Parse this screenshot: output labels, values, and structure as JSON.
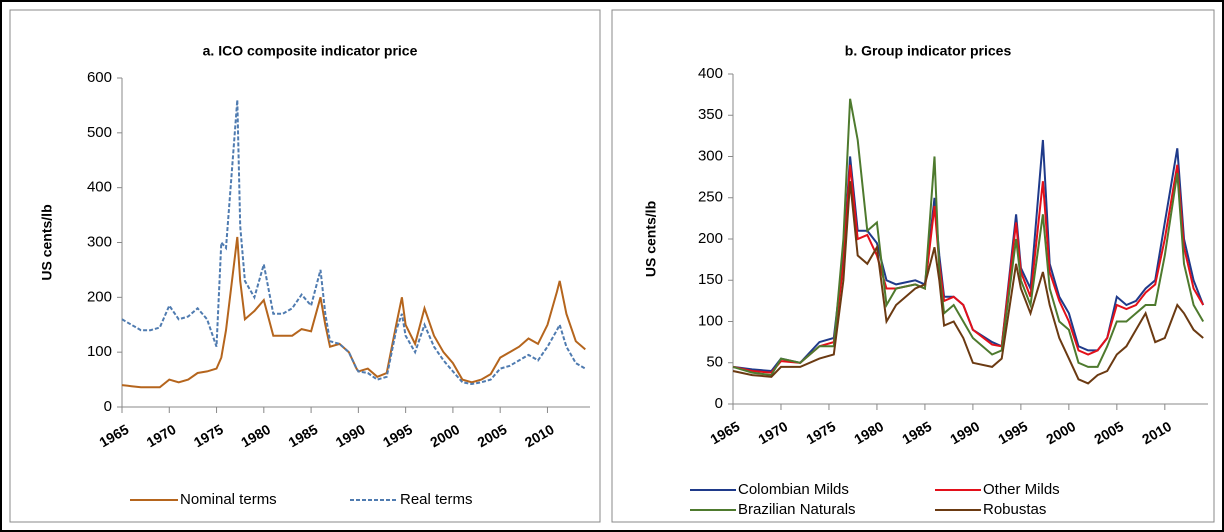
{
  "chart_data": [
    {
      "type": "line",
      "title": "a. ICO composite indicator price",
      "y_label": "US cents/lb",
      "x": [
        1965,
        1966,
        1967,
        1968,
        1969,
        1970,
        1971,
        1972,
        1973,
        1974,
        1975,
        1975.5,
        1976,
        1977.2,
        1977.5,
        1978,
        1979,
        1980,
        1981,
        1982,
        1983,
        1984,
        1985,
        1986,
        1986.5,
        1987,
        1988,
        1989,
        1989.8,
        1990,
        1991,
        1992,
        1993,
        1994,
        1994.6,
        1995,
        1996,
        1997,
        1998,
        1999,
        2000,
        2001,
        2002,
        2003,
        2004,
        2005,
        2006,
        2007,
        2008,
        2009,
        2010,
        2011,
        2011.3,
        2012,
        2013,
        2014
      ],
      "series": [
        {
          "name": "Nominal terms",
          "color": "#b5651d",
          "line_style": "solid",
          "values": [
            40,
            38,
            36,
            36,
            36,
            50,
            45,
            50,
            62,
            65,
            70,
            90,
            140,
            310,
            230,
            160,
            175,
            195,
            130,
            130,
            130,
            142,
            138,
            200,
            150,
            110,
            115,
            100,
            70,
            65,
            70,
            55,
            62,
            150,
            200,
            150,
            115,
            180,
            130,
            100,
            80,
            50,
            45,
            50,
            60,
            90,
            100,
            110,
            125,
            115,
            150,
            210,
            230,
            170,
            120,
            105
          ]
        },
        {
          "name": "Real terms",
          "color": "#4f7bb0",
          "line_style": "dashed",
          "values": [
            160,
            150,
            140,
            140,
            145,
            185,
            160,
            165,
            180,
            160,
            110,
            300,
            290,
            560,
            330,
            230,
            200,
            260,
            170,
            170,
            180,
            205,
            185,
            250,
            170,
            120,
            115,
            100,
            70,
            65,
            62,
            50,
            55,
            140,
            170,
            130,
            100,
            150,
            110,
            85,
            65,
            45,
            42,
            45,
            50,
            70,
            75,
            85,
            95,
            85,
            110,
            140,
            150,
            110,
            80,
            70
          ]
        }
      ],
      "xlim": [
        1965,
        2014.5
      ],
      "xticks": [
        1965,
        1970,
        1975,
        1980,
        1985,
        1990,
        1995,
        2000,
        2005,
        2010
      ],
      "ylim": [
        0,
        600
      ],
      "yticks": [
        0,
        100,
        200,
        300,
        400,
        500,
        600
      ],
      "legend": "bottom"
    },
    {
      "type": "line",
      "title": "b. Group indicator prices",
      "y_label": "US cents/lb",
      "x": [
        1965,
        1967,
        1969,
        1970,
        1972,
        1974,
        1975.5,
        1976.5,
        1977.2,
        1978,
        1979,
        1980,
        1981,
        1982,
        1984,
        1985,
        1986,
        1986.5,
        1987,
        1988,
        1989,
        1990,
        1992,
        1993,
        1994.5,
        1995,
        1996,
        1997.3,
        1998,
        1999,
        2000,
        2001,
        2002,
        2003,
        2004,
        2005,
        2006,
        2007,
        2008,
        2009,
        2010,
        2011.3,
        2012,
        2013,
        2014
      ],
      "series": [
        {
          "name": "Colombian Milds",
          "color": "#1f3a8a",
          "line_style": "solid",
          "values": [
            45,
            42,
            40,
            55,
            50,
            75,
            80,
            180,
            300,
            210,
            210,
            195,
            150,
            145,
            150,
            145,
            250,
            180,
            130,
            130,
            120,
            90,
            75,
            70,
            230,
            165,
            140,
            320,
            170,
            130,
            110,
            70,
            65,
            65,
            80,
            130,
            120,
            125,
            140,
            150,
            220,
            310,
            200,
            150,
            120
          ]
        },
        {
          "name": "Other Milds",
          "color": "#e3101a",
          "line_style": "solid",
          "values": [
            45,
            40,
            38,
            52,
            50,
            70,
            75,
            170,
            290,
            200,
            205,
            180,
            140,
            140,
            145,
            140,
            240,
            170,
            125,
            130,
            120,
            90,
            72,
            70,
            220,
            160,
            130,
            270,
            160,
            125,
            100,
            65,
            60,
            65,
            80,
            120,
            115,
            120,
            135,
            145,
            200,
            290,
            190,
            140,
            120
          ]
        },
        {
          "name": "Brazilian Naturals",
          "color": "#4e7a2e",
          "line_style": "solid",
          "values": [
            45,
            38,
            35,
            55,
            50,
            70,
            70,
            200,
            370,
            320,
            210,
            220,
            120,
            140,
            145,
            140,
            300,
            160,
            110,
            120,
            100,
            80,
            60,
            65,
            200,
            150,
            120,
            230,
            140,
            100,
            90,
            50,
            45,
            45,
            70,
            100,
            100,
            110,
            120,
            120,
            180,
            280,
            170,
            120,
            100
          ]
        },
        {
          "name": "Robustas",
          "color": "#6b3a12",
          "line_style": "solid",
          "values": [
            40,
            35,
            33,
            45,
            45,
            55,
            60,
            150,
            270,
            180,
            170,
            190,
            100,
            120,
            140,
            145,
            190,
            150,
            95,
            100,
            80,
            50,
            45,
            55,
            170,
            140,
            110,
            160,
            120,
            80,
            55,
            30,
            25,
            35,
            40,
            60,
            70,
            90,
            110,
            75,
            80,
            120,
            110,
            90,
            80
          ]
        }
      ],
      "xlim": [
        1965,
        2014.5
      ],
      "xticks": [
        1965,
        1970,
        1975,
        1980,
        1985,
        1990,
        1995,
        2000,
        2005,
        2010
      ],
      "ylim": [
        0,
        400
      ],
      "yticks": [
        0,
        50,
        100,
        150,
        200,
        250,
        300,
        350,
        400
      ],
      "legend": "bottom"
    }
  ]
}
